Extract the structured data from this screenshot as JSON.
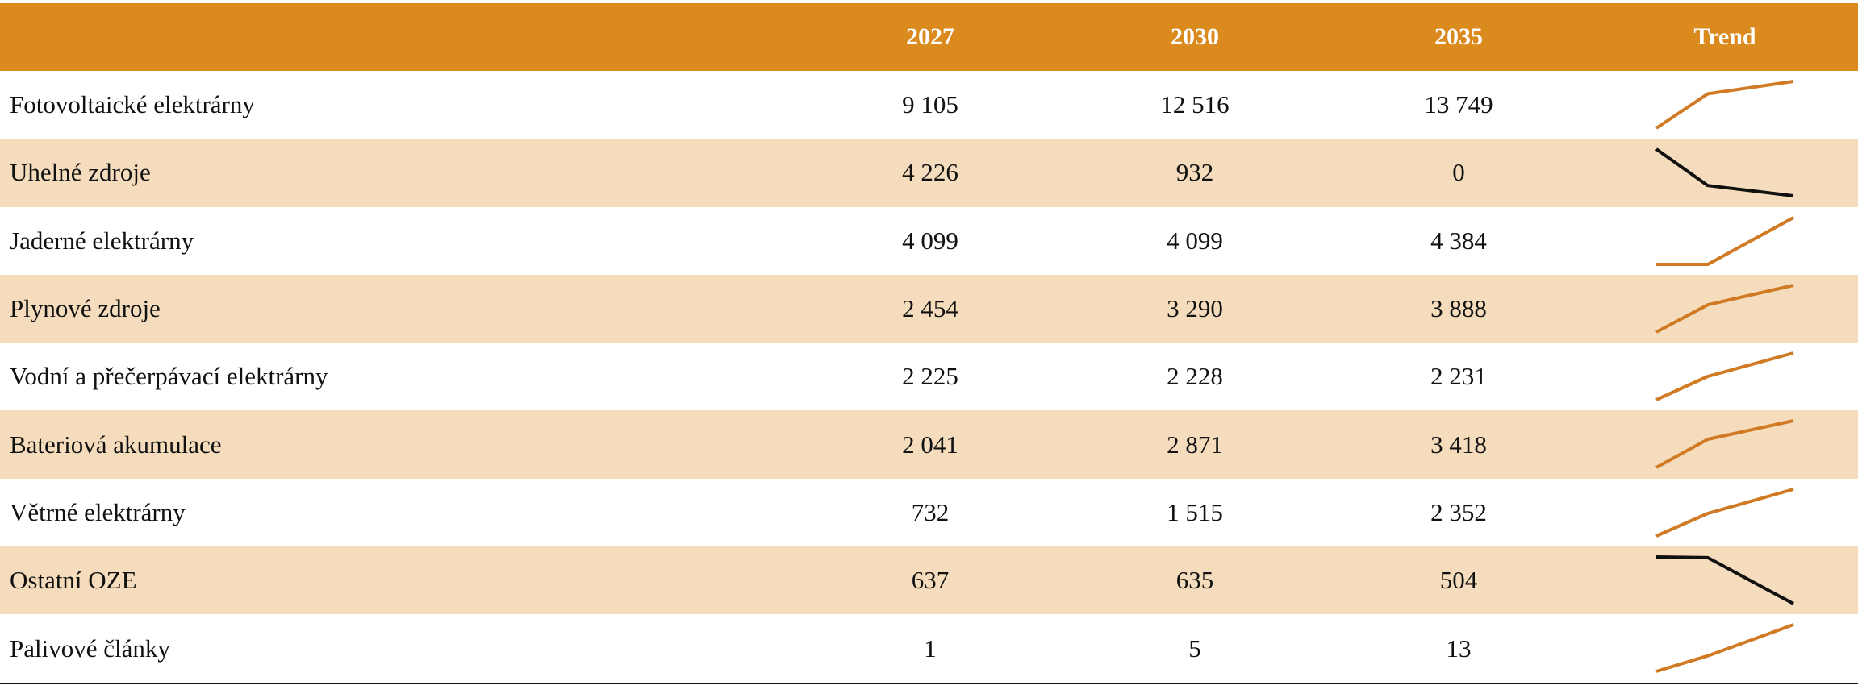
{
  "colors": {
    "header_bg": "#db8a1e",
    "band_bg": "#f4dcbc",
    "trend_up": "#d07a24",
    "trend_down": "#111111"
  },
  "chart_data": {
    "type": "table",
    "columns": [
      "",
      "2027",
      "2030",
      "2035",
      "Trend"
    ],
    "years": [
      2027,
      2030,
      2035
    ],
    "rows": [
      {
        "label": "Fotovoltaické elektrárny",
        "display": [
          "9 105",
          "12 516",
          "13 749"
        ],
        "values": [
          9105,
          12516,
          13749
        ],
        "trend": "up"
      },
      {
        "label": "Uhelné zdroje",
        "display": [
          "4 226",
          "932",
          "0"
        ],
        "values": [
          4226,
          932,
          0
        ],
        "trend": "down"
      },
      {
        "label": "Jaderné elektrárny",
        "display": [
          "4 099",
          "4 099",
          "4 384"
        ],
        "values": [
          4099,
          4099,
          4384
        ],
        "trend": "up"
      },
      {
        "label": "Plynové zdroje",
        "display": [
          "2 454",
          "3 290",
          "3 888"
        ],
        "values": [
          2454,
          3290,
          3888
        ],
        "trend": "up"
      },
      {
        "label": "Vodní a přečerpávací elektrárny",
        "display": [
          "2 225",
          "2 228",
          "2 231"
        ],
        "values": [
          2225,
          2228,
          2231
        ],
        "trend": "up"
      },
      {
        "label": "Bateriová akumulace",
        "display": [
          "2 041",
          "2 871",
          "3 418"
        ],
        "values": [
          2041,
          2871,
          3418
        ],
        "trend": "up"
      },
      {
        "label": "Větrné elektrárny",
        "display": [
          "732",
          "1 515",
          "2 352"
        ],
        "values": [
          732,
          1515,
          2352
        ],
        "trend": "up"
      },
      {
        "label": "Ostatní OZE",
        "display": [
          "637",
          "635",
          "504"
        ],
        "values": [
          637,
          635,
          504
        ],
        "trend": "down"
      },
      {
        "label": "Palivové články",
        "display": [
          "1",
          "5",
          "13"
        ],
        "values": [
          1,
          5,
          13
        ],
        "trend": "up"
      }
    ]
  }
}
